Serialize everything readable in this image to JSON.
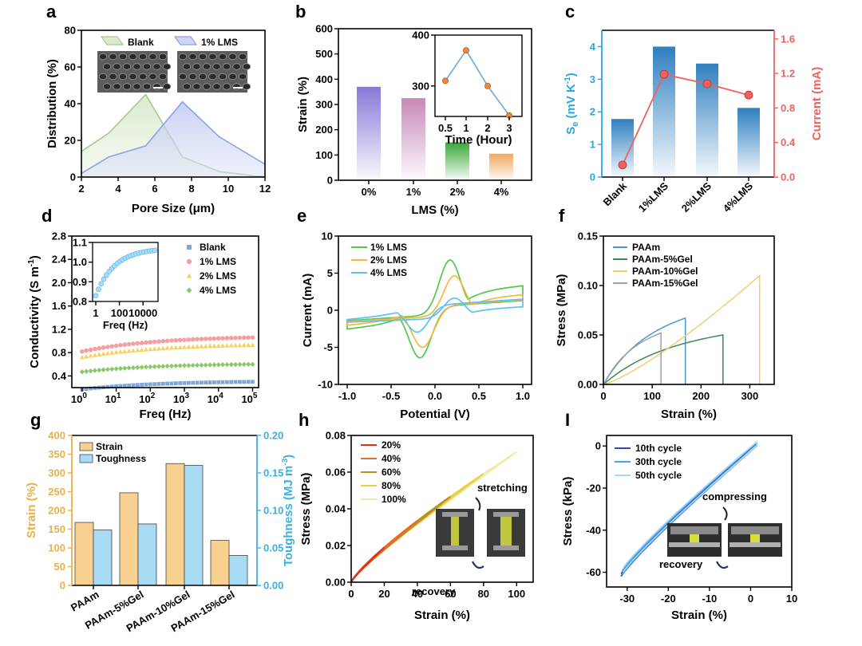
{
  "panels": {
    "a": {
      "label": "a"
    },
    "b": {
      "label": "b"
    },
    "c": {
      "label": "c"
    },
    "d": {
      "label": "d"
    },
    "e": {
      "label": "e"
    },
    "f": {
      "label": "f"
    },
    "g": {
      "label": "g"
    },
    "h": {
      "label": "h"
    },
    "i": {
      "label": "I"
    }
  },
  "colors": {
    "blank_green": "#a8c890",
    "lms_blue": "#8ea0e4",
    "bar_purple": "#8878d8",
    "bar_pink": "#c888b8",
    "bar_green": "#38a838",
    "bar_orange": "#f0a860",
    "inset_orange": "#e88a3a",
    "inset_line": "#6fa6d8",
    "c_bar_blue": "#2f7fc0",
    "c_red": "#f06060",
    "c_left_axis": "#29a8e0",
    "d_blank": "#7fa8d8",
    "d_1lms": "#f4a0a0",
    "d_2lms": "#f8d060",
    "d_4lms": "#88c868",
    "e_1lms": "#50c850",
    "e_2lms": "#f4b840",
    "e_4lms": "#60c0f0",
    "f_paam": "#4898d0",
    "f_5gel": "#3a8858",
    "f_10gel": "#f4cc70",
    "f_15gel": "#a0a0a0",
    "g_strain": "#f8d090",
    "g_tough": "#a8dcf4",
    "g_left_axis": "#e8b048",
    "g_right_axis": "#38b0e0",
    "i_10": "#3048c8",
    "i_30": "#40a8e0",
    "i_50": "#a8d8f8"
  },
  "chart_data": [
    {
      "panel": "a",
      "type": "area",
      "title": "",
      "xlabel": "Pore Size (μm)",
      "ylabel": "Distribution (%)",
      "xlim": [
        2,
        12
      ],
      "ylim": [
        0,
        80
      ],
      "xticks": [
        "2",
        "4",
        "6",
        "8",
        "10",
        "12"
      ],
      "yticks": [
        "0",
        "20",
        "40",
        "60",
        "80"
      ],
      "legend": [
        "Blank",
        "1% LMS"
      ],
      "series": [
        {
          "name": "Blank",
          "x": [
            2,
            3.5,
            5.5,
            7.5,
            9.5,
            11.5,
            12
          ],
          "y": [
            14,
            24,
            45,
            11,
            3,
            0.5,
            0.3
          ]
        },
        {
          "name": "1% LMS",
          "x": [
            2,
            3.5,
            5.5,
            7.5,
            9.5,
            11.5,
            12
          ],
          "y": [
            2,
            11,
            17,
            41,
            22,
            10,
            7
          ]
        }
      ]
    },
    {
      "panel": "b",
      "type": "bar",
      "title": "",
      "xlabel": "LMS (%)",
      "ylabel": "Strain (%)",
      "ylim": [
        0,
        600
      ],
      "yticks": [
        "0",
        "100",
        "200",
        "300",
        "400",
        "500",
        "600"
      ],
      "categories": [
        "0%",
        "1%",
        "2%",
        "4%"
      ],
      "values": [
        370,
        325,
        150,
        105
      ],
      "inset": {
        "type": "line",
        "xlabel": "Time (Hour)",
        "x": [
          "0.5",
          "1",
          "2",
          "3"
        ],
        "y": [
          310,
          370,
          300,
          242
        ],
        "ylim": [
          240,
          400
        ],
        "yticks": [
          "300",
          "400"
        ]
      }
    },
    {
      "panel": "c",
      "type": "bar+line",
      "title": "",
      "categories": [
        "Blank",
        "1%LMS",
        "2%LMS",
        "4%LMS"
      ],
      "ylabel_left": "S_e (mV K^-1)",
      "ylabel_right": "Current (mA)",
      "ylim_left": [
        0,
        4.5
      ],
      "ylim_right": [
        0,
        1.7
      ],
      "yticks_left": [
        "0",
        "1",
        "2",
        "3",
        "4"
      ],
      "yticks_right": [
        "0.0",
        "0.4",
        "0.8",
        "1.2",
        "1.6"
      ],
      "series": [
        {
          "name": "Se",
          "values": [
            1.78,
            4.0,
            3.48,
            2.12
          ]
        },
        {
          "name": "Current",
          "values": [
            0.14,
            1.19,
            1.08,
            0.95
          ]
        }
      ]
    },
    {
      "panel": "d",
      "type": "scatter",
      "title": "",
      "xlabel": "Freq (Hz)",
      "ylabel": "Conductivity (S m^-1)",
      "xscale": "log",
      "xlim": [
        0.5,
        150000
      ],
      "ylim": [
        0.2,
        2.8
      ],
      "yticks": [
        "0.4",
        "0.8",
        "1.2",
        "1.6",
        "2.0",
        "2.4",
        "2.8"
      ],
      "legend": [
        "Blank",
        "1% LMS",
        "2% LMS",
        "4% LMS"
      ],
      "series": [
        {
          "name": "Blank",
          "start": 0.17,
          "end": 0.3
        },
        {
          "name": "1% LMS",
          "start": 0.82,
          "end": 1.06
        },
        {
          "name": "2% LMS",
          "start": 0.72,
          "end": 0.93
        },
        {
          "name": "4% LMS",
          "start": 0.47,
          "end": 0.6
        }
      ],
      "inset": {
        "xlabel": "Freq (Hz)",
        "xticks": [
          "1",
          "100",
          "10000"
        ],
        "yticks": [
          "0.8",
          "0.9",
          "1.0",
          "1.1"
        ],
        "ylim": [
          0.8,
          1.1
        ],
        "start": 0.83,
        "end": 1.06
      }
    },
    {
      "panel": "e",
      "type": "line",
      "title": "",
      "xlabel": "Potential (V)",
      "ylabel": "Current (mA)",
      "xlim": [
        -1.1,
        1.1
      ],
      "ylim": [
        -10,
        10
      ],
      "xticks": [
        "-1.0",
        "-0.5",
        "0.0",
        "0.5",
        "1.0"
      ],
      "yticks": [
        "-10",
        "-5",
        "0",
        "5",
        "10"
      ],
      "legend": [
        "1% LMS",
        "2% LMS",
        "4% LMS"
      ],
      "series": [
        {
          "name": "1% LMS",
          "peak_ox": 7.3,
          "peak_red": -6.8
        },
        {
          "name": "2% LMS",
          "peak_ox": 5.4,
          "peak_red": -5.5
        },
        {
          "name": "4% LMS",
          "peak_ox": 2.7,
          "peak_red": -3.5
        }
      ]
    },
    {
      "panel": "f",
      "type": "line",
      "title": "",
      "xlabel": "Strain (%)",
      "ylabel": "Stress (MPa)",
      "xlim": [
        0,
        350
      ],
      "ylim": [
        0,
        0.15
      ],
      "xticks": [
        "0",
        "100",
        "200",
        "300"
      ],
      "yticks": [
        "0.00",
        "0.05",
        "0.10",
        "0.15"
      ],
      "legend": [
        "PAAm",
        "PAAm-5%Gel",
        "PAAm-10%Gel",
        "PAAm-15%Gel"
      ],
      "series": [
        {
          "name": "PAAm",
          "break_strain": 168,
          "break_stress": 0.067
        },
        {
          "name": "PAAm-5%Gel",
          "break_strain": 245,
          "break_stress": 0.05
        },
        {
          "name": "PAAm-10%Gel",
          "break_strain": 320,
          "break_stress": 0.11
        },
        {
          "name": "PAAm-15%Gel",
          "break_strain": 118,
          "break_stress": 0.052
        }
      ]
    },
    {
      "panel": "g",
      "type": "bar",
      "title": "",
      "ylabel_left": "Strain (%)",
      "ylabel_right": "Toughness (MJ m^-3)",
      "ylim_left": [
        0,
        400
      ],
      "ylim_right": [
        0,
        0.2
      ],
      "yticks_left": [
        "0",
        "50",
        "100",
        "150",
        "200",
        "250",
        "300",
        "350",
        "400"
      ],
      "yticks_right": [
        "0.00",
        "0.05",
        "0.10",
        "0.15",
        "0.20"
      ],
      "categories": [
        "PAAm",
        "PAAm-5%Gel",
        "PAAm-10%Gel",
        "PAAm-15%Gel"
      ],
      "legend": [
        "Strain",
        "Toughness"
      ],
      "series": [
        {
          "name": "Strain",
          "values": [
            168,
            247,
            325,
            120
          ]
        },
        {
          "name": "Toughness",
          "values": [
            0.074,
            0.082,
            0.16,
            0.04
          ]
        }
      ]
    },
    {
      "panel": "h",
      "type": "line",
      "title": "",
      "xlabel": "Strain (%)",
      "ylabel": "Stress (MPa)",
      "xlim": [
        0,
        110
      ],
      "ylim": [
        0,
        0.08
      ],
      "xticks": [
        "0",
        "20",
        "40",
        "60",
        "80",
        "100"
      ],
      "yticks": [
        "0.00",
        "0.02",
        "0.04",
        "0.06",
        "0.08"
      ],
      "legend": [
        "20%",
        "40%",
        "60%",
        "80%",
        "100%"
      ],
      "annotations": [
        "stretching",
        "recovery"
      ],
      "series": [
        {
          "name": "20%",
          "max_strain": 20,
          "max_stress": 0.023
        },
        {
          "name": "40%",
          "max_strain": 40,
          "max_stress": 0.039
        },
        {
          "name": "60%",
          "max_strain": 60,
          "max_stress": 0.052
        },
        {
          "name": "80%",
          "max_strain": 80,
          "max_stress": 0.062
        },
        {
          "name": "100%",
          "max_strain": 100,
          "max_stress": 0.071
        }
      ]
    },
    {
      "panel": "i",
      "type": "line",
      "title": "",
      "xlabel": "Strain (%)",
      "ylabel": "Stress (kPa)",
      "xlim": [
        -35,
        10
      ],
      "ylim": [
        -67,
        5
      ],
      "xticks": [
        "-30",
        "-20",
        "-10",
        "0",
        "10"
      ],
      "yticks": [
        "-60",
        "-40",
        "-20",
        "0"
      ],
      "legend": [
        "10th cycle",
        "30th cycle",
        "50th cycle"
      ],
      "annotations": [
        "compressing",
        "recovery"
      ],
      "series": [
        {
          "name": "10th cycle",
          "min_strain": -31.5,
          "min_stress": -62
        },
        {
          "name": "30th cycle",
          "min_strain": -31.2,
          "min_stress": -61
        },
        {
          "name": "50th cycle",
          "min_strain": -31,
          "min_stress": -60
        }
      ]
    }
  ]
}
